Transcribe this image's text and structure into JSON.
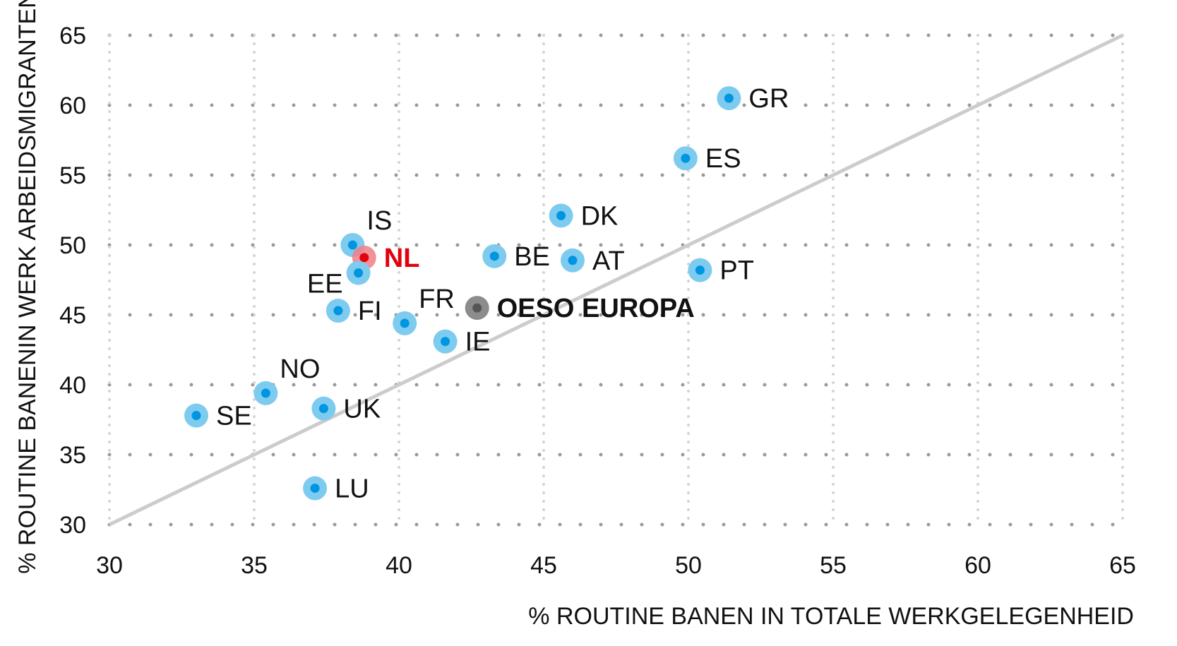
{
  "chart_data": {
    "type": "scatter",
    "title": "",
    "xlabel": "% ROUTINE BANEN IN TOTALE WERKGELEGENHEID",
    "ylabel": "% ROUTINE BANENIN WERK ARBEIDSMIGRANTEN",
    "xlim": [
      30,
      65
    ],
    "ylim": [
      30,
      65
    ],
    "xticks": [
      "30",
      "35",
      "40",
      "45",
      "50",
      "55",
      "60",
      "65"
    ],
    "yticks": [
      "30",
      "35",
      "40",
      "45",
      "50",
      "55",
      "60",
      "65"
    ],
    "grid": true,
    "reference_line": {
      "from": [
        30,
        30
      ],
      "to": [
        65,
        65
      ],
      "color": "#cccccc"
    },
    "colors": {
      "country": "#7ecbf0",
      "country_dot": "#0095e0",
      "nl": "#f07f86",
      "nl_dot": "#e3000f",
      "oeso": "#8c8c8c",
      "oeso_dot": "#555555"
    },
    "points": [
      {
        "label": "GR",
        "x": 51.4,
        "y": 60.5,
        "group": "country",
        "label_pos": "right"
      },
      {
        "label": "ES",
        "x": 49.9,
        "y": 56.2,
        "group": "country",
        "label_pos": "right"
      },
      {
        "label": "DK",
        "x": 45.6,
        "y": 52.1,
        "group": "country",
        "label_pos": "right"
      },
      {
        "label": "IS",
        "x": 38.4,
        "y": 50.0,
        "group": "country",
        "label_pos": "above-right"
      },
      {
        "label": "NL",
        "x": 38.8,
        "y": 49.1,
        "group": "nl",
        "label_pos": "right"
      },
      {
        "label": "BE",
        "x": 43.3,
        "y": 49.2,
        "group": "country",
        "label_pos": "right"
      },
      {
        "label": "AT",
        "x": 46.0,
        "y": 48.9,
        "group": "country",
        "label_pos": "right"
      },
      {
        "label": "EE",
        "x": 38.6,
        "y": 48.0,
        "group": "country",
        "label_pos": "below-left"
      },
      {
        "label": "PT",
        "x": 50.4,
        "y": 48.2,
        "group": "country",
        "label_pos": "right"
      },
      {
        "label": "FI",
        "x": 37.9,
        "y": 45.3,
        "group": "country",
        "label_pos": "right"
      },
      {
        "label": "OESO EUROPA",
        "x": 42.7,
        "y": 45.5,
        "group": "oeso",
        "label_pos": "right"
      },
      {
        "label": "FR",
        "x": 40.2,
        "y": 44.4,
        "group": "country",
        "label_pos": "above-right"
      },
      {
        "label": "IE",
        "x": 41.6,
        "y": 43.1,
        "group": "country",
        "label_pos": "right"
      },
      {
        "label": "NO",
        "x": 35.4,
        "y": 39.4,
        "group": "country",
        "label_pos": "above-right"
      },
      {
        "label": "UK",
        "x": 37.4,
        "y": 38.3,
        "group": "country",
        "label_pos": "right"
      },
      {
        "label": "SE",
        "x": 33.0,
        "y": 37.8,
        "group": "country",
        "label_pos": "right"
      },
      {
        "label": "LU",
        "x": 37.1,
        "y": 32.6,
        "group": "country",
        "label_pos": "right"
      }
    ]
  }
}
